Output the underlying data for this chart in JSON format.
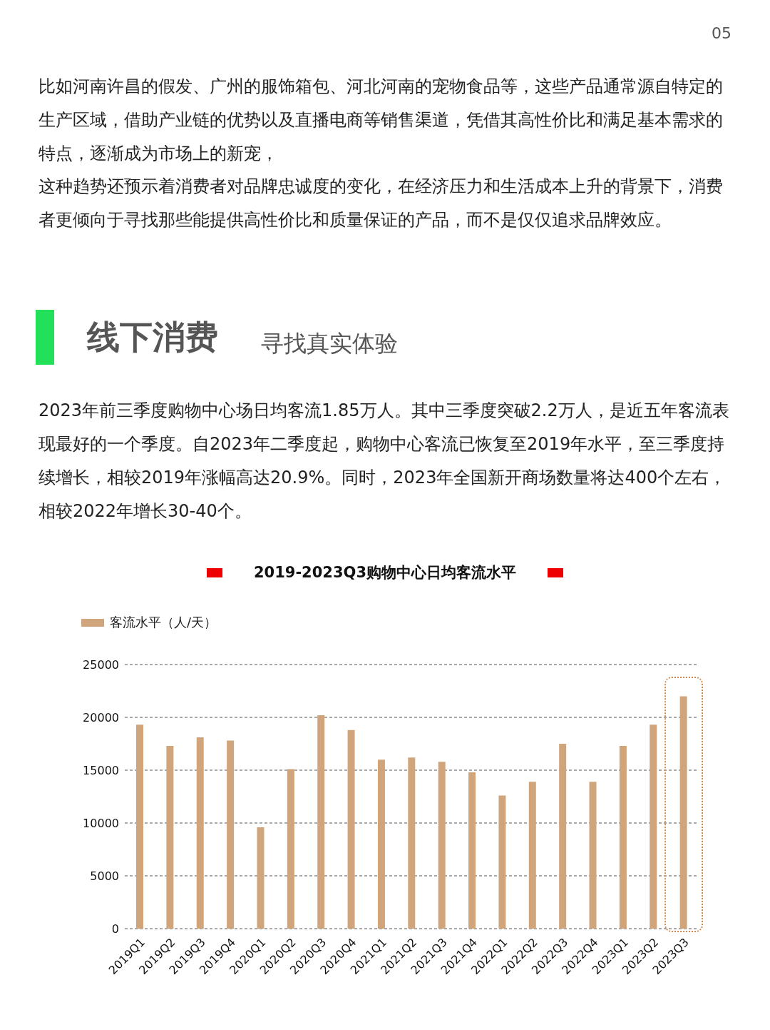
{
  "chart_data": {
    "type": "bar",
    "title": "2019-2023Q3购物中心日均客流水平",
    "annotations": [
      "05",
      "比如河南许昌的假发、广州的服饰箱包、河北河南的宠物食品等，这些产品通常源自特定的生产区域，借助产业链的优势以及直播电商等销售渠道，凭借其高性价比和满足基本需求的特点，逐渐成为市场上的新宠，",
      "这种趋势还预示着消费者对品牌忠诚度的变化，在经济压力和生活成本上升的背景下，消费者更倾向于寻找那些能提供高性价比和质量保证的产品，而不是仅仅追求品牌效应。",
      "线下消费",
      "寻找真实体验",
      "2023年前三季度购物中心场日均客流1.85万人。其中三季度突破2.2万人，是近五年客流表现最好的一个季度。自2023年二季度起，购物中心客流已恢复至2019年水平，至三季度持续增长，相较2019年涨幅高达20.9%。同时，2023年全国新开商场数量将达400个左右，相较2022年增长30-40个。"
    ],
    "categories": [
      "2019Q1",
      "2019Q2",
      "2019Q3",
      "2019Q4",
      "2020Q1",
      "2020Q2",
      "2020Q3",
      "2020Q4",
      "2021Q1",
      "2021Q2",
      "2021Q3",
      "2021Q4",
      "2022Q1",
      "2022Q2",
      "2022Q3",
      "2022Q4",
      "2023Q1",
      "2023Q2",
      "2023Q3"
    ],
    "series": [
      {
        "name": "客流水平（人/天）",
        "color": "#d1a57c",
        "values": [
          19300,
          17300,
          18100,
          17800,
          9600,
          15100,
          20200,
          18800,
          16000,
          16200,
          15800,
          14800,
          12600,
          13900,
          17500,
          13900,
          17300,
          19300,
          22000
        ]
      }
    ],
    "ylim": [
      0,
      25000
    ],
    "yticks": [
      0,
      5000,
      10000,
      15000,
      20000,
      25000
    ],
    "grid": "y",
    "legend": "top left"
  }
}
